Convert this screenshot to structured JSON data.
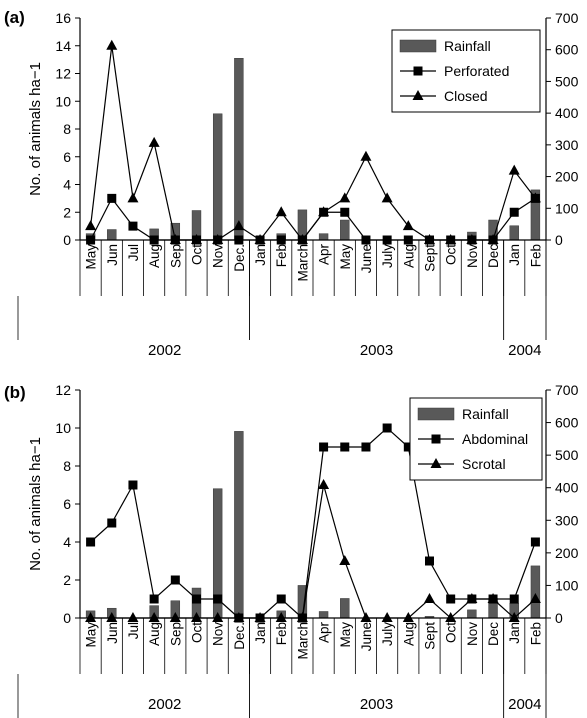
{
  "chart_data": [
    {
      "panel_label": "(a)",
      "type": "bar+line",
      "ylabel": "No. of animals ha−1",
      "ylim_left": [
        0,
        16
      ],
      "yticks_left": [
        0,
        2,
        4,
        6,
        8,
        10,
        12,
        14,
        16
      ],
      "ylim_right": [
        0,
        700
      ],
      "yticks_right": [
        0,
        100,
        200,
        300,
        400,
        500,
        600,
        700
      ],
      "categories": [
        "May",
        "Jun",
        "Jul",
        "Aug",
        "Sep",
        "Oct",
        "Nov",
        "Dec.",
        "Jan",
        "Feb",
        "March",
        "Apr",
        "May",
        "June",
        "July",
        "Aug",
        "Sept",
        "Oct",
        "Nov",
        "Dec",
        "Jan",
        "Feb"
      ],
      "years": [
        {
          "label": "2002",
          "start": 0,
          "end": 7
        },
        {
          "label": "2003",
          "start": 8,
          "end": 19
        },
        {
          "label": "2004",
          "start": 20,
          "end": 21
        }
      ],
      "legend_position": "top-right",
      "series": [
        {
          "name": "Rainfall",
          "kind": "bar",
          "axis": "right",
          "values": [
            20,
            33,
            0,
            35,
            53,
            93,
            398,
            573,
            0,
            20,
            95,
            20,
            63,
            0,
            0,
            0,
            5,
            0,
            25,
            63,
            45,
            158
          ]
        },
        {
          "name": "Perforated",
          "kind": "line",
          "marker": "square",
          "axis": "left",
          "values": [
            0,
            3,
            1,
            0,
            0,
            0,
            0,
            0,
            0,
            0,
            0,
            2,
            2,
            0,
            0,
            0,
            0,
            0,
            0,
            0,
            2,
            3
          ]
        },
        {
          "name": "Closed",
          "kind": "line",
          "marker": "triangle",
          "axis": "left",
          "values": [
            1,
            14,
            3,
            7,
            0,
            0,
            0,
            1,
            0,
            2,
            0,
            2,
            3,
            6,
            3,
            1,
            0,
            0,
            0,
            0,
            5,
            3
          ]
        }
      ]
    },
    {
      "panel_label": "(b)",
      "type": "bar+line",
      "ylabel": "No. of animals ha−1",
      "ylim_left": [
        0,
        12
      ],
      "yticks_left": [
        0,
        2,
        4,
        6,
        8,
        10,
        12
      ],
      "ylim_right": [
        0,
        700
      ],
      "yticks_right": [
        0,
        100,
        200,
        300,
        400,
        500,
        600,
        700
      ],
      "categories": [
        "May",
        "Jun",
        "Jul",
        "Aug",
        "Sep",
        "Oct",
        "Nov",
        "Dec.",
        "Jan",
        "Feb",
        "March",
        "Apr",
        "May",
        "June",
        "July",
        "Aug",
        "Sept",
        "Oct",
        "Nov",
        "Dec",
        "Jan",
        "Feb"
      ],
      "years": [
        {
          "label": "2002",
          "start": 0,
          "end": 7
        },
        {
          "label": "2003",
          "start": 8,
          "end": 19
        },
        {
          "label": "2004",
          "start": 20,
          "end": 21
        }
      ],
      "legend_position": "top-right",
      "series": [
        {
          "name": "Rainfall",
          "kind": "bar",
          "axis": "right",
          "values": [
            22,
            30,
            0,
            38,
            53,
            92,
            397,
            573,
            0,
            22,
            100,
            20,
            60,
            0,
            0,
            0,
            5,
            0,
            25,
            60,
            45,
            160
          ]
        },
        {
          "name": "Abdominal",
          "kind": "line",
          "marker": "square",
          "axis": "left",
          "values": [
            4,
            5,
            7,
            1,
            2,
            1,
            1,
            0,
            0,
            1,
            0,
            9,
            9,
            9,
            10,
            9,
            3,
            1,
            1,
            1,
            1,
            4
          ]
        },
        {
          "name": "Scrotal",
          "kind": "line",
          "marker": "triangle",
          "axis": "left",
          "values": [
            0,
            0,
            0,
            0,
            0,
            0,
            0,
            0,
            0,
            0,
            0,
            7,
            3,
            0,
            0,
            0,
            1,
            0,
            1,
            1,
            0,
            1
          ]
        }
      ]
    }
  ]
}
